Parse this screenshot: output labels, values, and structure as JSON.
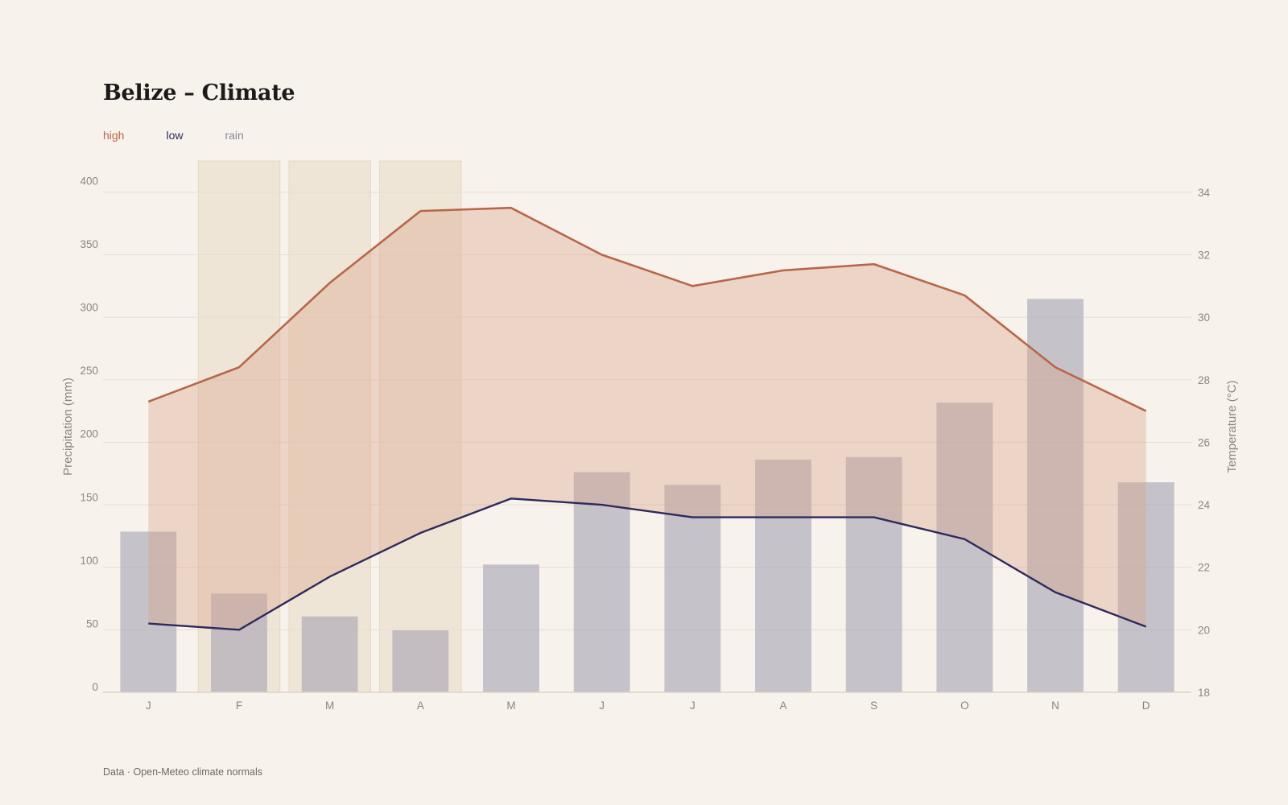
{
  "page": {
    "title": "Belize – Climate",
    "source": "Data · Open-Meteo climate normals"
  },
  "legend": [
    {
      "label": "high",
      "color": "#b8664a"
    },
    {
      "label": "low",
      "color": "#2e2a5c"
    },
    {
      "label": "rain",
      "color": "#8a88a0"
    }
  ],
  "chart_data": {
    "type": "bar+line",
    "categories": [
      "J",
      "F",
      "M",
      "A",
      "M",
      "J",
      "J",
      "A",
      "S",
      "O",
      "N",
      "D"
    ],
    "series": [
      {
        "name": "rain",
        "type": "bar",
        "axis": "left",
        "color": "#c2bfc8",
        "values": [
          127,
          78,
          60,
          49,
          101,
          174,
          164,
          184,
          186,
          229,
          311,
          166
        ]
      },
      {
        "name": "high",
        "type": "line",
        "axis": "right",
        "color": "#b8664a",
        "values": [
          27.3,
          28.4,
          31.1,
          33.4,
          33.5,
          32.0,
          31.0,
          31.5,
          31.7,
          30.7,
          28.4,
          27.0
        ]
      },
      {
        "name": "low",
        "type": "line",
        "axis": "right",
        "color": "#2e2a5c",
        "values": [
          20.2,
          20.0,
          21.7,
          23.1,
          24.2,
          24.0,
          23.6,
          23.6,
          23.6,
          22.9,
          21.2,
          20.1
        ]
      }
    ],
    "dry_season_highlight": [
      "F",
      "M",
      "A"
    ],
    "y_left": {
      "label": "Precipitation (mm)",
      "min": 0,
      "max": 420,
      "ticks": [
        0,
        50,
        100,
        150,
        200,
        250,
        300,
        350,
        400
      ]
    },
    "y_right": {
      "label": "Temperature (°C)",
      "min": 18,
      "max": 35,
      "ticks": [
        18,
        20,
        22,
        24,
        26,
        28,
        30,
        32,
        34
      ]
    },
    "grid": true,
    "legend_position": "top-left"
  }
}
